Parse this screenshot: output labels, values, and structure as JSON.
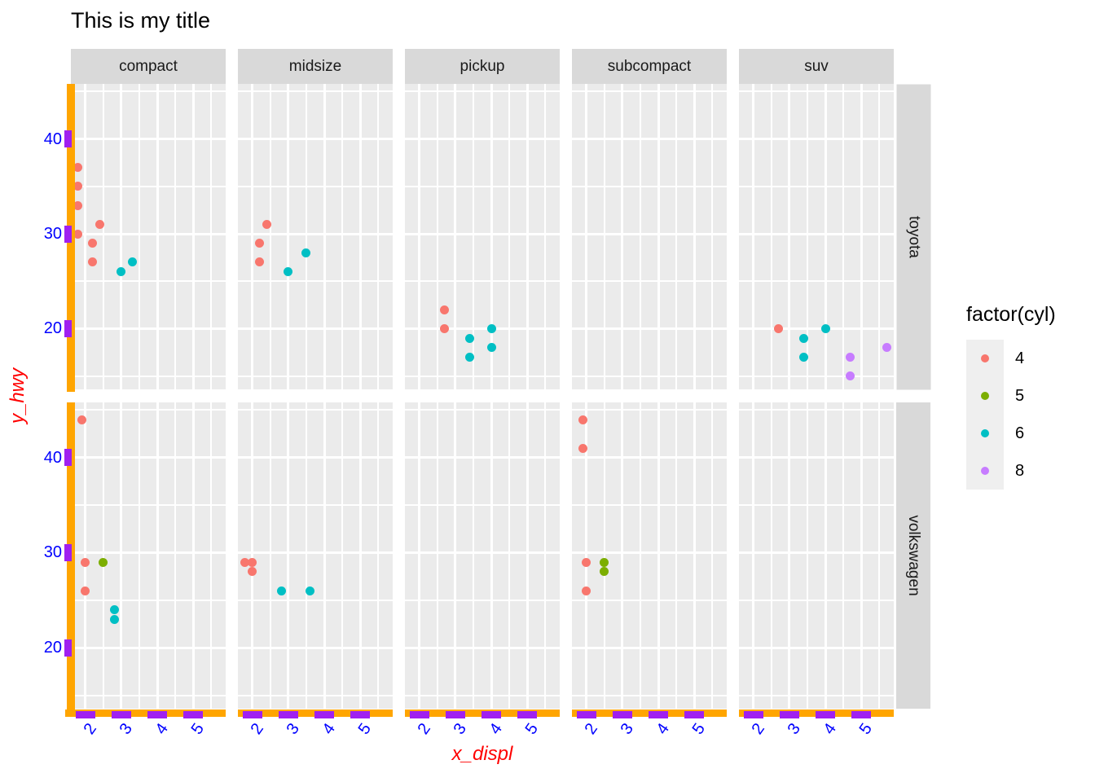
{
  "title": "This is my title",
  "chart_data": {
    "type": "scatter",
    "title": "This is my title",
    "xlabel": "x_displ",
    "ylabel": "y_hwy",
    "col_facets": [
      "compact",
      "midsize",
      "pickup",
      "subcompact",
      "suv"
    ],
    "row_facets": [
      "toyota",
      "volkswagen"
    ],
    "x_ticks": [
      2,
      3,
      4,
      5
    ],
    "x_minor_ticks": [
      2.5,
      3.5,
      4.5,
      5.5
    ],
    "y_ticks": [
      20,
      30,
      40
    ],
    "y_minor_ticks": [
      15,
      25,
      35,
      45
    ],
    "x_range": [
      1.6,
      5.9
    ],
    "y_range": [
      13.6,
      45.8
    ],
    "grid": "on",
    "legend": {
      "title": "factor(cyl)",
      "position": "right",
      "entries": [
        {
          "label": "4",
          "color": "#F8766D"
        },
        {
          "label": "5",
          "color": "#7CAE00"
        },
        {
          "label": "6",
          "color": "#00BFC4"
        },
        {
          "label": "8",
          "color": "#C77CFF"
        }
      ]
    },
    "points": [
      {
        "row": "toyota",
        "col": "compact",
        "x": 1.8,
        "y": 37,
        "cyl": "4"
      },
      {
        "row": "toyota",
        "col": "compact",
        "x": 1.8,
        "y": 35,
        "cyl": "4"
      },
      {
        "row": "toyota",
        "col": "compact",
        "x": 1.8,
        "y": 33,
        "cyl": "4"
      },
      {
        "row": "toyota",
        "col": "compact",
        "x": 1.8,
        "y": 30,
        "cyl": "4"
      },
      {
        "row": "toyota",
        "col": "compact",
        "x": 2.4,
        "y": 31,
        "cyl": "4"
      },
      {
        "row": "toyota",
        "col": "compact",
        "x": 2.2,
        "y": 29,
        "cyl": "4"
      },
      {
        "row": "toyota",
        "col": "compact",
        "x": 2.2,
        "y": 27,
        "cyl": "4"
      },
      {
        "row": "toyota",
        "col": "compact",
        "x": 3.3,
        "y": 27,
        "cyl": "6"
      },
      {
        "row": "toyota",
        "col": "compact",
        "x": 3.0,
        "y": 26,
        "cyl": "6"
      },
      {
        "row": "toyota",
        "col": "midsize",
        "x": 2.4,
        "y": 31,
        "cyl": "4"
      },
      {
        "row": "toyota",
        "col": "midsize",
        "x": 2.2,
        "y": 29,
        "cyl": "4"
      },
      {
        "row": "toyota",
        "col": "midsize",
        "x": 2.2,
        "y": 27,
        "cyl": "4"
      },
      {
        "row": "toyota",
        "col": "midsize",
        "x": 3.5,
        "y": 28,
        "cyl": "6"
      },
      {
        "row": "toyota",
        "col": "midsize",
        "x": 3.0,
        "y": 26,
        "cyl": "6"
      },
      {
        "row": "toyota",
        "col": "pickup",
        "x": 2.7,
        "y": 22,
        "cyl": "4"
      },
      {
        "row": "toyota",
        "col": "pickup",
        "x": 2.7,
        "y": 20,
        "cyl": "4"
      },
      {
        "row": "toyota",
        "col": "pickup",
        "x": 4.0,
        "y": 20,
        "cyl": "6"
      },
      {
        "row": "toyota",
        "col": "pickup",
        "x": 3.4,
        "y": 19,
        "cyl": "6"
      },
      {
        "row": "toyota",
        "col": "pickup",
        "x": 4.0,
        "y": 18,
        "cyl": "6"
      },
      {
        "row": "toyota",
        "col": "pickup",
        "x": 3.4,
        "y": 17,
        "cyl": "6"
      },
      {
        "row": "toyota",
        "col": "suv",
        "x": 2.7,
        "y": 20,
        "cyl": "4"
      },
      {
        "row": "toyota",
        "col": "suv",
        "x": 4.0,
        "y": 20,
        "cyl": "6"
      },
      {
        "row": "toyota",
        "col": "suv",
        "x": 3.4,
        "y": 19,
        "cyl": "6"
      },
      {
        "row": "toyota",
        "col": "suv",
        "x": 3.4,
        "y": 17,
        "cyl": "6"
      },
      {
        "row": "toyota",
        "col": "suv",
        "x": 5.7,
        "y": 18,
        "cyl": "8"
      },
      {
        "row": "toyota",
        "col": "suv",
        "x": 4.7,
        "y": 17,
        "cyl": "8"
      },
      {
        "row": "toyota",
        "col": "suv",
        "x": 4.7,
        "y": 15,
        "cyl": "8"
      },
      {
        "row": "volkswagen",
        "col": "compact",
        "x": 1.9,
        "y": 44,
        "cyl": "4"
      },
      {
        "row": "volkswagen",
        "col": "compact",
        "x": 2.0,
        "y": 29,
        "cyl": "4"
      },
      {
        "row": "volkswagen",
        "col": "compact",
        "x": 2.5,
        "y": 29,
        "cyl": "5"
      },
      {
        "row": "volkswagen",
        "col": "compact",
        "x": 2.0,
        "y": 26,
        "cyl": "4"
      },
      {
        "row": "volkswagen",
        "col": "compact",
        "x": 2.8,
        "y": 24,
        "cyl": "6"
      },
      {
        "row": "volkswagen",
        "col": "compact",
        "x": 2.8,
        "y": 23,
        "cyl": "6"
      },
      {
        "row": "volkswagen",
        "col": "midsize",
        "x": 1.8,
        "y": 29,
        "cyl": "4"
      },
      {
        "row": "volkswagen",
        "col": "midsize",
        "x": 2.0,
        "y": 29,
        "cyl": "4"
      },
      {
        "row": "volkswagen",
        "col": "midsize",
        "x": 2.0,
        "y": 28,
        "cyl": "4"
      },
      {
        "row": "volkswagen",
        "col": "midsize",
        "x": 2.8,
        "y": 26,
        "cyl": "6"
      },
      {
        "row": "volkswagen",
        "col": "midsize",
        "x": 3.6,
        "y": 26,
        "cyl": "6"
      },
      {
        "row": "volkswagen",
        "col": "subcompact",
        "x": 1.9,
        "y": 44,
        "cyl": "4"
      },
      {
        "row": "volkswagen",
        "col": "subcompact",
        "x": 1.9,
        "y": 41,
        "cyl": "4"
      },
      {
        "row": "volkswagen",
        "col": "subcompact",
        "x": 2.0,
        "y": 29,
        "cyl": "4"
      },
      {
        "row": "volkswagen",
        "col": "subcompact",
        "x": 2.5,
        "y": 29,
        "cyl": "5"
      },
      {
        "row": "volkswagen",
        "col": "subcompact",
        "x": 2.5,
        "y": 28,
        "cyl": "5"
      },
      {
        "row": "volkswagen",
        "col": "subcompact",
        "x": 2.0,
        "y": 26,
        "cyl": "4"
      }
    ],
    "style": {
      "panel_bg": "#EBEBEB",
      "strip_bg": "#D9D9D9",
      "grid_color": "#FFFFFF",
      "axis_line": "#FFA500",
      "tick_mark": "#A020F0",
      "tick_label": "#0000FF",
      "axis_title": "#FF0000",
      "legend_key_bg": "#EFEFEF",
      "title_color": "#000000"
    }
  }
}
